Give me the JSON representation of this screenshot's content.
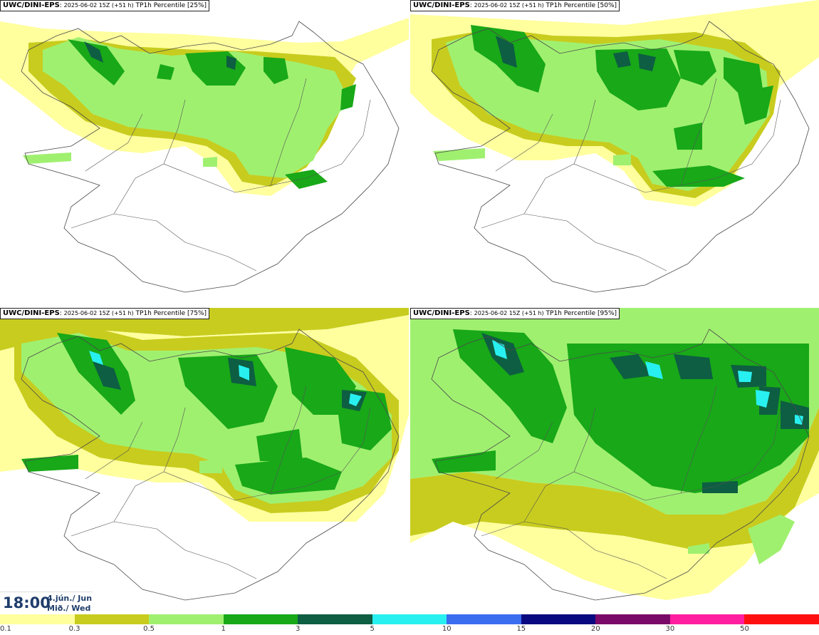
{
  "panels": [
    {
      "source": "UWC/DINI-EPS",
      "run": "2025-06-02 15Z (+51 h)",
      "field": "TP1h Percentile [25%]",
      "percentile": 25
    },
    {
      "source": "UWC/DINI-EPS",
      "run": "2025-06-02 15Z (+51 h)",
      "field": "TP1h Percentile [50%]",
      "percentile": 50
    },
    {
      "source": "UWC/DINI-EPS",
      "run": "2025-06-02 15Z (+51 h)",
      "field": "TP1h Percentile [75%]",
      "percentile": 75
    },
    {
      "source": "UWC/DINI-EPS",
      "run": "2025-06-02 15Z (+51 h)",
      "field": "TP1h Percentile [95%]",
      "percentile": 95
    }
  ],
  "valid_time": {
    "time": "18:00",
    "date_line1": "4.jún./ Jun",
    "date_line2": "Mið./ Wed"
  },
  "legend": {
    "ticks": [
      "0.1",
      "0.3",
      "0.5",
      "1",
      "3",
      "5",
      "10",
      "15",
      "20",
      "30",
      "50"
    ],
    "colors": [
      "#ffff9e",
      "#c8cc1e",
      "#a0f070",
      "#18a818",
      "#0d5e42",
      "#28f0f0",
      "#3a6cf0",
      "#0a0a80",
      "#7a0a6a",
      "#ff1ea0",
      "#ff1010"
    ]
  },
  "map_colors": {
    "land_outline": "#4a4a4a",
    "roads": "#555555"
  }
}
